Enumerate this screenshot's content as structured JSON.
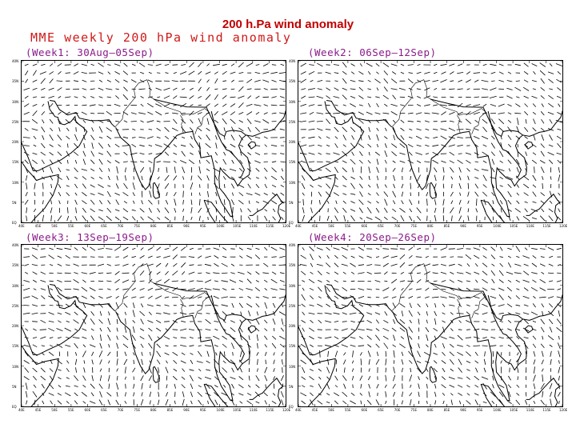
{
  "slide_title": "200  h.Pa  wind anomaly",
  "subtitle": "MME weekly 200 hPa wind anomaly",
  "panels": [
    {
      "label": "(Week1: 30Aug—05Sep)"
    },
    {
      "label": "(Week2: 06Sep—12Sep)"
    },
    {
      "label": "(Week3: 13Sep—19Sep)"
    },
    {
      "label": "(Week4: 20Sep—26Sep)"
    }
  ],
  "lat_labels": [
    "40N",
    "35N",
    "30N",
    "25N",
    "20N",
    "15N",
    "10N",
    "5N",
    "EQ"
  ],
  "lon_labels": [
    "40E",
    "45E",
    "50E",
    "55E",
    "60E",
    "65E",
    "70E",
    "75E",
    "80E",
    "85E",
    "90E",
    "95E",
    "100E",
    "105E",
    "110E",
    "115E",
    "120E"
  ],
  "colors": {
    "title": "#c00000",
    "subtitle": "#d01818",
    "week_label": "#8a1a8a",
    "vectors": "#000000"
  }
}
